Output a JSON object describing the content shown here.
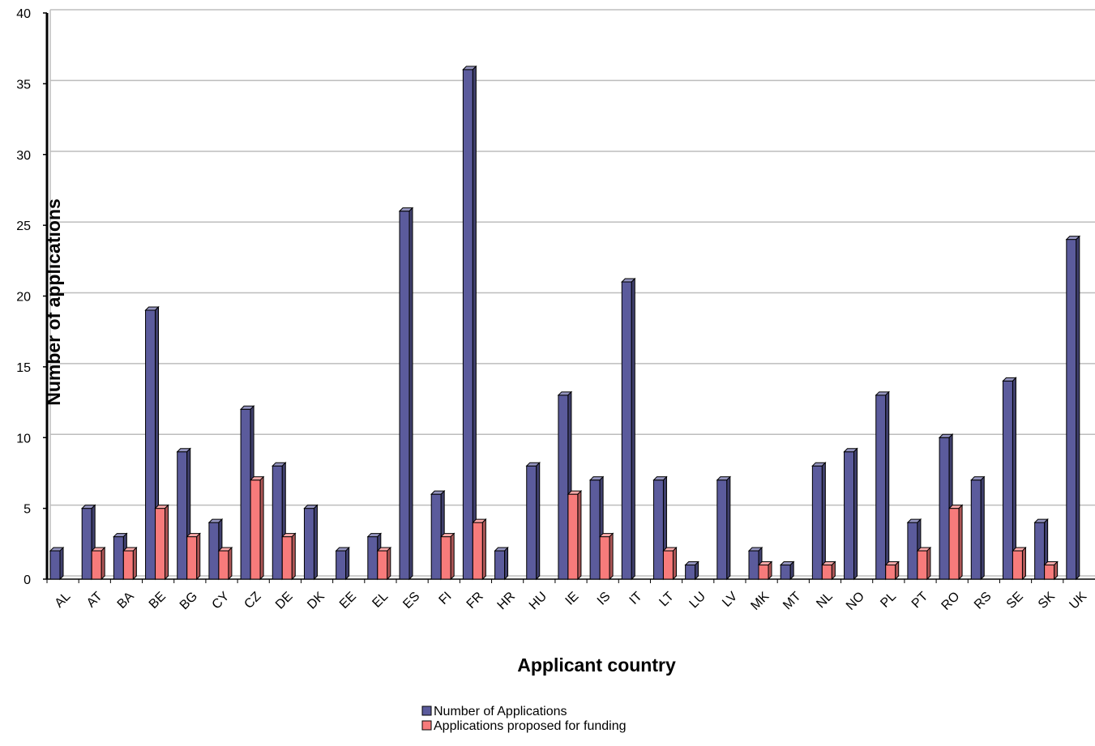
{
  "chart_data": {
    "type": "bar",
    "title": "",
    "xlabel": "Applicant country",
    "ylabel": "Number of applications",
    "ylim": [
      0,
      40
    ],
    "yticks": [
      0,
      5,
      10,
      15,
      20,
      25,
      30,
      35,
      40
    ],
    "grid": true,
    "legend_position": "bottom",
    "categories": [
      "AL",
      "AT",
      "BA",
      "BE",
      "BG",
      "CY",
      "CZ",
      "DE",
      "DK",
      "EE",
      "EL",
      "ES",
      "FI",
      "FR",
      "HR",
      "HU",
      "IE",
      "IS",
      "IT",
      "LT",
      "LU",
      "LV",
      "MK",
      "MT",
      "NL",
      "NO",
      "PL",
      "PT",
      "RO",
      "RS",
      "SE",
      "SK",
      "UK"
    ],
    "series": [
      {
        "name": "Number of Applications",
        "color": "#5b5b9c",
        "values": [
          2,
          5,
          3,
          19,
          9,
          4,
          12,
          8,
          5,
          2,
          3,
          26,
          6,
          36,
          2,
          8,
          13,
          7,
          21,
          7,
          1,
          7,
          2,
          1,
          8,
          9,
          13,
          4,
          10,
          7,
          14,
          4,
          24
        ]
      },
      {
        "name": "Applications proposed for funding",
        "color": "#f77b7b",
        "values": [
          0,
          2,
          2,
          5,
          3,
          2,
          7,
          3,
          0,
          0,
          2,
          0,
          3,
          4,
          0,
          0,
          6,
          3,
          0,
          2,
          0,
          0,
          1,
          0,
          1,
          0,
          1,
          2,
          5,
          0,
          2,
          1,
          0
        ]
      }
    ]
  }
}
